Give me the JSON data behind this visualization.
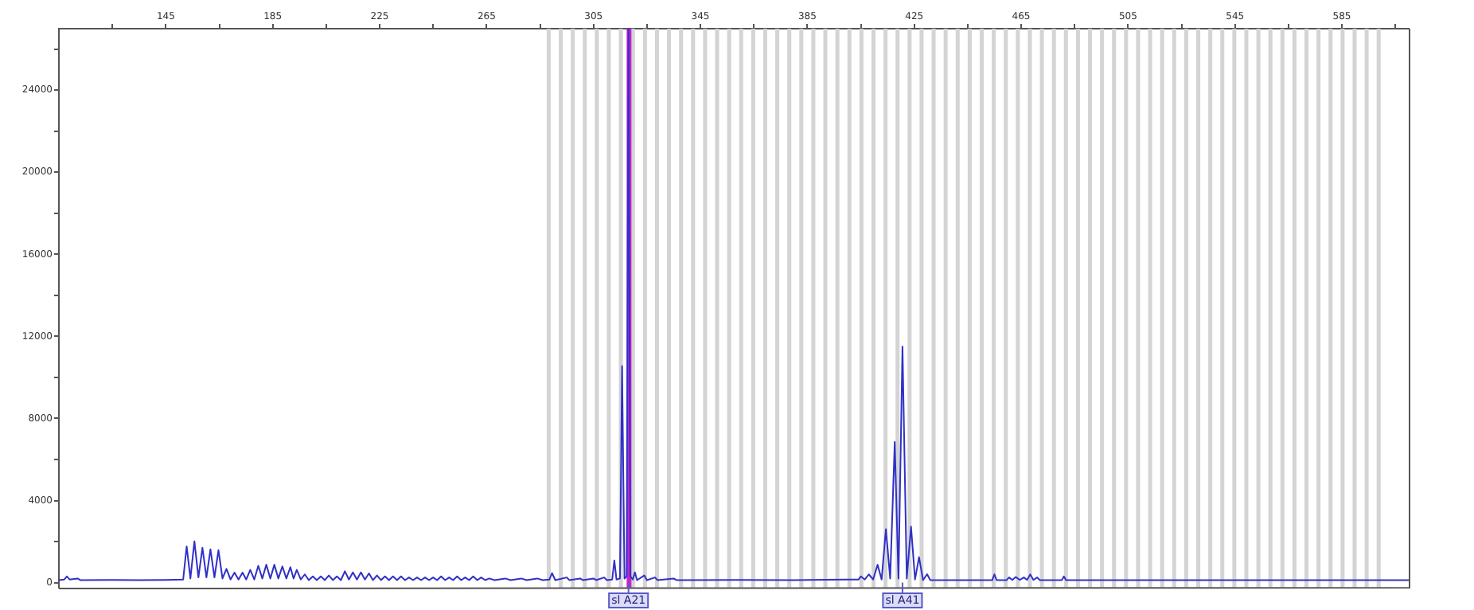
{
  "chart_data": {
    "type": "line",
    "xlim": [
      105,
      610
    ],
    "ylim": [
      -250,
      27000
    ],
    "xticks": [
      {
        "value": 125,
        "label": null
      },
      145,
      {
        "value": 165,
        "label": null
      },
      185,
      {
        "value": 205,
        "label": null
      },
      225,
      {
        "value": 245,
        "label": null
      },
      265,
      {
        "value": 285,
        "label": null
      },
      305,
      {
        "value": 325,
        "label": null
      },
      345,
      {
        "value": 365,
        "label": null
      },
      385,
      {
        "value": 405,
        "label": null
      },
      425,
      {
        "value": 445,
        "label": null
      },
      465,
      {
        "value": 485,
        "label": null
      },
      505,
      {
        "value": 525,
        "label": null
      },
      545,
      {
        "value": 565,
        "label": null
      },
      585,
      {
        "value": 605,
        "label": null
      }
    ],
    "yticks": [
      0,
      {
        "value": 2000,
        "label": null
      },
      4000,
      {
        "value": 6000,
        "label": null
      },
      8000,
      {
        "value": 10000,
        "label": null
      },
      12000,
      {
        "value": 14000,
        "label": null
      },
      16000,
      {
        "value": 18000,
        "label": null
      },
      20000,
      {
        "value": 22000,
        "label": null
      },
      24000,
      {
        "value": 26000,
        "label": null
      }
    ],
    "grid": false,
    "legend": false,
    "marker": "none",
    "line_style": "solid",
    "series": [
      {
        "color": "#3030c8",
        "x": [
          105,
          107,
          108,
          109,
          112,
          113,
          125,
          135,
          145,
          151.5,
          152.8,
          154.2,
          155.7,
          157.2,
          158.7,
          160.2,
          161.7,
          163.2,
          164.7,
          166.2,
          167.7,
          169.2,
          170.7,
          172.2,
          173.7,
          175.1,
          176.6,
          178.1,
          179.6,
          181.1,
          182.6,
          184.1,
          185.6,
          187.1,
          188.6,
          190.1,
          191.6,
          192.8,
          194,
          195.5,
          197,
          198.5,
          200,
          201.5,
          203,
          204.5,
          206,
          207.5,
          209,
          210.5,
          212,
          213.5,
          215,
          216.5,
          218,
          219.5,
          221,
          222.5,
          224,
          225.5,
          227,
          228.5,
          230,
          231.5,
          233,
          234.5,
          236,
          237.5,
          239,
          240.5,
          242,
          243.5,
          245,
          246.5,
          248,
          249.5,
          251,
          252.5,
          254,
          255.5,
          257,
          258.5,
          260,
          261.5,
          263,
          264.5,
          266,
          268,
          272,
          274,
          278,
          280,
          284,
          286,
          288.5,
          289.5,
          290.7,
          295,
          296,
          300,
          301,
          305,
          306,
          309,
          310,
          312,
          312.8,
          313.6,
          314.9,
          315.7,
          316.6,
          317.4,
          318.1,
          318.8,
          319.7,
          320.5,
          321.3,
          324,
          325,
          328,
          329,
          335,
          336,
          360,
          380,
          400,
          404.2,
          405,
          406.5,
          408,
          409.6,
          411.3,
          412.8,
          414.4,
          416,
          417.7,
          419.1,
          420.6,
          422.2,
          423.8,
          425.3,
          426.8,
          428.3,
          429.8,
          431,
          450,
          454.2,
          455,
          455.8,
          459.5,
          460.5,
          461.7,
          463,
          464.5,
          466,
          467.2,
          468.4,
          469.6,
          471,
          472,
          480.2,
          481,
          481.8,
          500,
          540,
          580,
          610
        ],
        "values": [
          120,
          150,
          300,
          150,
          200,
          120,
          130,
          120,
          130,
          150,
          1760,
          200,
          2010,
          250,
          1700,
          250,
          1620,
          250,
          1580,
          200,
          670,
          150,
          490,
          150,
          490,
          150,
          620,
          150,
          820,
          200,
          870,
          200,
          870,
          200,
          790,
          200,
          750,
          200,
          620,
          150,
          400,
          120,
          300,
          120,
          300,
          120,
          350,
          120,
          300,
          120,
          550,
          150,
          500,
          150,
          500,
          150,
          450,
          120,
          350,
          120,
          300,
          120,
          300,
          120,
          300,
          120,
          250,
          120,
          250,
          120,
          250,
          120,
          250,
          120,
          300,
          120,
          250,
          120,
          300,
          120,
          250,
          120,
          300,
          120,
          250,
          120,
          200,
          120,
          200,
          120,
          200,
          120,
          200,
          120,
          150,
          460,
          120,
          250,
          120,
          200,
          120,
          200,
          120,
          250,
          120,
          150,
          1080,
          150,
          200,
          10550,
          200,
          300,
          27000,
          300,
          150,
          500,
          120,
          350,
          120,
          250,
          120,
          200,
          120,
          130,
          120,
          150,
          150,
          300,
          150,
          400,
          150,
          870,
          150,
          2600,
          200,
          6850,
          200,
          11500,
          200,
          2730,
          150,
          1240,
          120,
          410,
          120,
          120,
          120,
          400,
          120,
          120,
          250,
          130,
          270,
          130,
          250,
          130,
          400,
          130,
          250,
          120,
          120,
          300,
          120,
          120,
          120,
          120,
          120
        ]
      }
    ],
    "ref_lines": [
      {
        "axis": "x",
        "value": 318.3,
        "color": "#cc22cc"
      }
    ],
    "bands": [
      {
        "axis": "x",
        "from": 287.5,
        "to": 289,
        "color": "#d4d4d4"
      },
      {
        "axis": "x",
        "from": 292,
        "to": 293.5,
        "color": "#d4d4d4"
      },
      {
        "axis": "x",
        "from": 296.5,
        "to": 298,
        "color": "#d4d4d4"
      },
      {
        "axis": "x",
        "from": 301,
        "to": 302.5,
        "color": "#d4d4d4"
      },
      {
        "axis": "x",
        "from": 305.5,
        "to": 307,
        "color": "#d4d4d4"
      },
      {
        "axis": "x",
        "from": 310,
        "to": 311.5,
        "color": "#d4d4d4"
      },
      {
        "axis": "x",
        "from": 314.5,
        "to": 316,
        "color": "#d4d4d4"
      },
      {
        "axis": "x",
        "from": 319,
        "to": 320.5,
        "color": "#d4d4d4"
      },
      {
        "axis": "x",
        "from": 323.5,
        "to": 325,
        "color": "#d4d4d4"
      },
      {
        "axis": "x",
        "from": 328,
        "to": 329.5,
        "color": "#d4d4d4"
      },
      {
        "axis": "x",
        "from": 332.5,
        "to": 334,
        "color": "#d4d4d4"
      },
      {
        "axis": "x",
        "from": 337,
        "to": 338.5,
        "color": "#d4d4d4"
      },
      {
        "axis": "x",
        "from": 341.5,
        "to": 343,
        "color": "#d4d4d4"
      },
      {
        "axis": "x",
        "from": 346,
        "to": 347.5,
        "color": "#d4d4d4"
      },
      {
        "axis": "x",
        "from": 350.5,
        "to": 352,
        "color": "#d4d4d4"
      },
      {
        "axis": "x",
        "from": 355,
        "to": 356.5,
        "color": "#d4d4d4"
      },
      {
        "axis": "x",
        "from": 359.5,
        "to": 361,
        "color": "#d4d4d4"
      },
      {
        "axis": "x",
        "from": 364,
        "to": 365.5,
        "color": "#d4d4d4"
      },
      {
        "axis": "x",
        "from": 368.5,
        "to": 370,
        "color": "#d4d4d4"
      },
      {
        "axis": "x",
        "from": 373,
        "to": 374.5,
        "color": "#d4d4d4"
      },
      {
        "axis": "x",
        "from": 377.5,
        "to": 379,
        "color": "#d4d4d4"
      },
      {
        "axis": "x",
        "from": 382,
        "to": 383.5,
        "color": "#d4d4d4"
      },
      {
        "axis": "x",
        "from": 386.5,
        "to": 388,
        "color": "#d4d4d4"
      },
      {
        "axis": "x",
        "from": 391,
        "to": 392.5,
        "color": "#d4d4d4"
      },
      {
        "axis": "x",
        "from": 395.5,
        "to": 397,
        "color": "#d4d4d4"
      },
      {
        "axis": "x",
        "from": 400,
        "to": 401.5,
        "color": "#d4d4d4"
      },
      {
        "axis": "x",
        "from": 404.5,
        "to": 406,
        "color": "#d4d4d4"
      },
      {
        "axis": "x",
        "from": 409,
        "to": 410.5,
        "color": "#d4d4d4"
      },
      {
        "axis": "x",
        "from": 413.5,
        "to": 415,
        "color": "#d4d4d4"
      },
      {
        "axis": "x",
        "from": 418,
        "to": 419.5,
        "color": "#d4d4d4"
      },
      {
        "axis": "x",
        "from": 422.5,
        "to": 424,
        "color": "#d4d4d4"
      },
      {
        "axis": "x",
        "from": 427,
        "to": 428.5,
        "color": "#d4d4d4"
      },
      {
        "axis": "x",
        "from": 431.5,
        "to": 433,
        "color": "#d4d4d4"
      },
      {
        "axis": "x",
        "from": 436,
        "to": 437.5,
        "color": "#d4d4d4"
      },
      {
        "axis": "x",
        "from": 440.5,
        "to": 442,
        "color": "#d4d4d4"
      },
      {
        "axis": "x",
        "from": 445,
        "to": 446.5,
        "color": "#d4d4d4"
      },
      {
        "axis": "x",
        "from": 449.5,
        "to": 451,
        "color": "#d4d4d4"
      },
      {
        "axis": "x",
        "from": 454,
        "to": 455.5,
        "color": "#d4d4d4"
      },
      {
        "axis": "x",
        "from": 458.5,
        "to": 460,
        "color": "#d4d4d4"
      },
      {
        "axis": "x",
        "from": 463,
        "to": 464.5,
        "color": "#d4d4d4"
      },
      {
        "axis": "x",
        "from": 467.5,
        "to": 469,
        "color": "#d4d4d4"
      },
      {
        "axis": "x",
        "from": 472,
        "to": 473.5,
        "color": "#d4d4d4"
      },
      {
        "axis": "x",
        "from": 476.5,
        "to": 478,
        "color": "#d4d4d4"
      },
      {
        "axis": "x",
        "from": 481,
        "to": 482.5,
        "color": "#d4d4d4"
      },
      {
        "axis": "x",
        "from": 485.5,
        "to": 487,
        "color": "#d4d4d4"
      },
      {
        "axis": "x",
        "from": 490,
        "to": 491.5,
        "color": "#d4d4d4"
      },
      {
        "axis": "x",
        "from": 494.5,
        "to": 496,
        "color": "#d4d4d4"
      },
      {
        "axis": "x",
        "from": 499,
        "to": 500.5,
        "color": "#d4d4d4"
      },
      {
        "axis": "x",
        "from": 503.5,
        "to": 505,
        "color": "#d4d4d4"
      },
      {
        "axis": "x",
        "from": 508,
        "to": 509.5,
        "color": "#d4d4d4"
      },
      {
        "axis": "x",
        "from": 512.5,
        "to": 514,
        "color": "#d4d4d4"
      },
      {
        "axis": "x",
        "from": 517,
        "to": 518.5,
        "color": "#d4d4d4"
      },
      {
        "axis": "x",
        "from": 521.5,
        "to": 523,
        "color": "#d4d4d4"
      },
      {
        "axis": "x",
        "from": 526,
        "to": 527.5,
        "color": "#d4d4d4"
      },
      {
        "axis": "x",
        "from": 530.5,
        "to": 532,
        "color": "#d4d4d4"
      },
      {
        "axis": "x",
        "from": 535,
        "to": 536.5,
        "color": "#d4d4d4"
      },
      {
        "axis": "x",
        "from": 539.5,
        "to": 541,
        "color": "#d4d4d4"
      },
      {
        "axis": "x",
        "from": 544,
        "to": 545.5,
        "color": "#d4d4d4"
      },
      {
        "axis": "x",
        "from": 548.5,
        "to": 550,
        "color": "#d4d4d4"
      },
      {
        "axis": "x",
        "from": 553,
        "to": 554.5,
        "color": "#d4d4d4"
      },
      {
        "axis": "x",
        "from": 557.5,
        "to": 559,
        "color": "#d4d4d4"
      },
      {
        "axis": "x",
        "from": 562,
        "to": 563.5,
        "color": "#d4d4d4"
      },
      {
        "axis": "x",
        "from": 566.5,
        "to": 568,
        "color": "#d4d4d4"
      },
      {
        "axis": "x",
        "from": 571,
        "to": 572.5,
        "color": "#d4d4d4"
      },
      {
        "axis": "x",
        "from": 575.5,
        "to": 577,
        "color": "#d4d4d4"
      },
      {
        "axis": "x",
        "from": 580,
        "to": 581.5,
        "color": "#d4d4d4"
      },
      {
        "axis": "x",
        "from": 584.5,
        "to": 586,
        "color": "#d4d4d4"
      },
      {
        "axis": "x",
        "from": 589,
        "to": 590.5,
        "color": "#d4d4d4"
      },
      {
        "axis": "x",
        "from": 593.5,
        "to": 595,
        "color": "#d4d4d4"
      },
      {
        "axis": "x",
        "from": 598,
        "to": 599.5,
        "color": "#d4d4d4"
      }
    ],
    "annotations": [
      {
        "text": "sl A21",
        "x": 318.1,
        "y": 0
      },
      {
        "text": "sl A41",
        "x": 420.6,
        "y": 0
      }
    ]
  }
}
